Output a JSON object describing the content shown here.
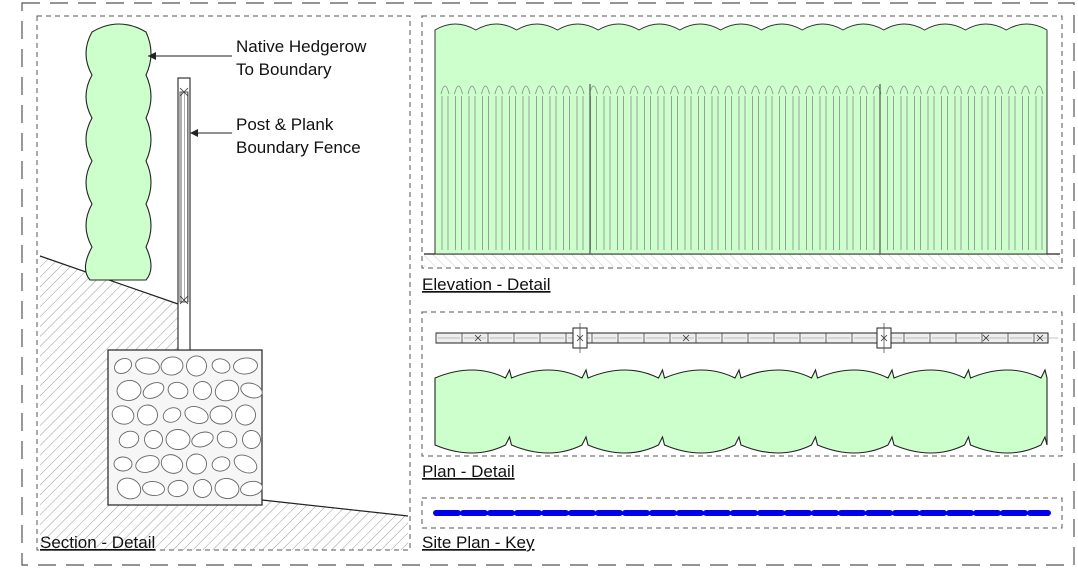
{
  "captions": {
    "section": "Section - Detail",
    "elevation": "Elevation - Detail",
    "plan": "Plan - Detail",
    "key": "Site Plan - Key"
  },
  "annotations": {
    "hedgerow": [
      "Native Hedgerow",
      "To Boundary"
    ],
    "fence": [
      "Post & Plank",
      "Boundary Fence"
    ]
  },
  "colors": {
    "hedge_fill": "#ccffcc",
    "key_line": "#0000ee",
    "line": "#222222",
    "hatch": "#9a9a9a"
  }
}
